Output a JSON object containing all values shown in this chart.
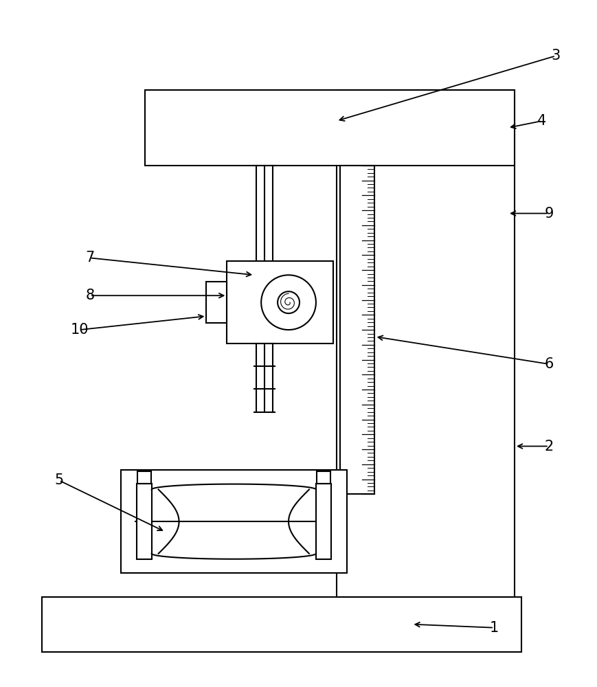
{
  "bg_color": "#ffffff",
  "line_color": "#000000",
  "lw": 1.5,
  "fig_width": 8.69,
  "fig_height": 10.0
}
